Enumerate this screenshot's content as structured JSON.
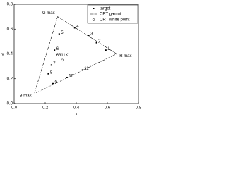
{
  "chart_data": {
    "type": "scatter",
    "xlabel": "x",
    "ylabel": "y",
    "xlim": [
      0,
      0.8
    ],
    "ylim": [
      0,
      0.8
    ],
    "xticks": [
      {
        "value": 0,
        "label": "0.0"
      },
      {
        "value": 0.2,
        "label": "0.2"
      },
      {
        "value": 0.4,
        "label": "0.4"
      },
      {
        "value": 0.6,
        "label": "0.6"
      },
      {
        "value": 0.8,
        "label": "0.8"
      }
    ],
    "yticks": [
      {
        "value": 0,
        "label": "0.0"
      },
      {
        "value": 0.2,
        "label": "0.2"
      },
      {
        "value": 0.4,
        "label": "0.4"
      },
      {
        "value": 0.6,
        "label": "0.6"
      },
      {
        "value": 0.8,
        "label": "0.8"
      }
    ],
    "legend": "top-right",
    "series": [
      {
        "name": "target",
        "color": "#000000",
        "marker": "square",
        "x": [
          0.59,
          0.53,
          0.48,
          0.39,
          0.29,
          0.26,
          0.24,
          0.22,
          0.25,
          0.34,
          0.44
        ],
        "y": [
          0.43,
          0.49,
          0.55,
          0.61,
          0.56,
          0.43,
          0.31,
          0.24,
          0.16,
          0.21,
          0.27
        ],
        "point_labels": [
          "1",
          "2",
          "3",
          "4",
          "5",
          "6",
          "7",
          "8",
          "9",
          "10",
          "11"
        ]
      },
      {
        "name": "CRT gamut",
        "color": "#000000",
        "marker": "dashdot",
        "x": [
          0.66,
          0.28,
          0.13
        ],
        "y": [
          0.4,
          0.7,
          0.08
        ],
        "point_labels": [
          "R max",
          "G max",
          "B max"
        ]
      },
      {
        "name": "CRT white point",
        "color": "#000000",
        "marker": "circle",
        "x": [
          0.31
        ],
        "y": [
          0.35
        ],
        "point_labels": [
          "6311K"
        ]
      }
    ]
  }
}
